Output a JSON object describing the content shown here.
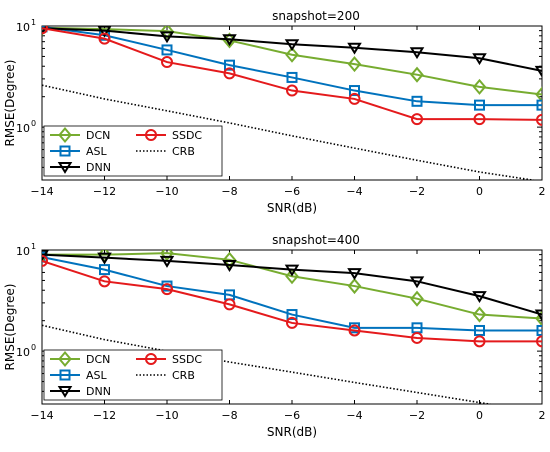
{
  "chart_data": [
    {
      "type": "line",
      "title": "snapshot=200",
      "xlabel": "SNR(dB)",
      "ylabel": "RMSE(Degree)",
      "yscale": "log",
      "xlim": [
        -14,
        2
      ],
      "ylim": [
        0.3,
        10
      ],
      "x": [
        -14,
        -12,
        -10,
        -8,
        -6,
        -4,
        -2,
        0,
        2
      ],
      "xticks": [
        "−14",
        "−12",
        "−10",
        "−8",
        "−6",
        "−4",
        "−2",
        "0",
        "2"
      ],
      "yticks": [
        {
          "label": "10",
          "exp": "0",
          "value": 1
        },
        {
          "label": "10",
          "exp": "1",
          "value": 10
        }
      ],
      "grid": false,
      "legend": "bottom-left",
      "series": [
        {
          "name": "DCN",
          "color": "#77AC30",
          "marker": "diamond",
          "values": [
            9.6,
            9.3,
            8.9,
            7.2,
            5.2,
            4.2,
            3.3,
            2.5,
            2.1
          ]
        },
        {
          "name": "ASL",
          "color": "#0072BD",
          "marker": "square",
          "values": [
            9.8,
            8.1,
            5.8,
            4.1,
            3.1,
            2.3,
            1.8,
            1.65,
            1.65
          ]
        },
        {
          "name": "DNN",
          "color": "#000000",
          "marker": "triangle-down",
          "values": [
            9.5,
            9.0,
            7.9,
            7.4,
            6.6,
            6.1,
            5.5,
            4.8,
            3.6
          ]
        },
        {
          "name": "SSDC",
          "color": "#E41A1C",
          "marker": "circle",
          "values": [
            9.5,
            7.5,
            4.4,
            3.4,
            2.3,
            1.9,
            1.2,
            1.2,
            1.18
          ]
        },
        {
          "name": "CRB",
          "color": "#000000",
          "marker": "none",
          "dotted": true,
          "values": [
            2.6,
            1.9,
            1.45,
            1.1,
            0.82,
            0.62,
            0.47,
            0.36,
            0.29
          ]
        }
      ]
    },
    {
      "type": "line",
      "title": "snapshot=400",
      "xlabel": "SNR(dB)",
      "ylabel": "RMSE(Degree)",
      "yscale": "log",
      "xlim": [
        -14,
        2
      ],
      "ylim": [
        0.3,
        10
      ],
      "x": [
        -14,
        -12,
        -10,
        -8,
        -6,
        -4,
        -2,
        0,
        2
      ],
      "xticks": [
        "−14",
        "−12",
        "−10",
        "−8",
        "−6",
        "−4",
        "−2",
        "0",
        "2"
      ],
      "yticks": [
        {
          "label": "10",
          "exp": "0",
          "value": 1
        },
        {
          "label": "10",
          "exp": "1",
          "value": 10
        }
      ],
      "grid": false,
      "legend": "bottom-left",
      "series": [
        {
          "name": "DCN",
          "color": "#77AC30",
          "marker": "diamond",
          "values": [
            9.0,
            9.0,
            9.3,
            8.0,
            5.5,
            4.4,
            3.3,
            2.3,
            2.1
          ]
        },
        {
          "name": "ASL",
          "color": "#0072BD",
          "marker": "square",
          "values": [
            8.5,
            6.4,
            4.4,
            3.6,
            2.3,
            1.7,
            1.7,
            1.6,
            1.6
          ]
        },
        {
          "name": "DNN",
          "color": "#000000",
          "marker": "triangle-down",
          "values": [
            9.0,
            8.4,
            7.8,
            7.1,
            6.4,
            5.9,
            4.9,
            3.5,
            2.3
          ]
        },
        {
          "name": "SSDC",
          "color": "#E41A1C",
          "marker": "circle",
          "values": [
            7.8,
            4.9,
            4.1,
            2.9,
            1.9,
            1.6,
            1.35,
            1.25,
            1.25
          ]
        },
        {
          "name": "CRB",
          "color": "#000000",
          "marker": "none",
          "dotted": true,
          "values": [
            1.8,
            1.3,
            1.0,
            0.78,
            0.62,
            0.49,
            0.39,
            0.31,
            0.25
          ]
        }
      ]
    }
  ]
}
